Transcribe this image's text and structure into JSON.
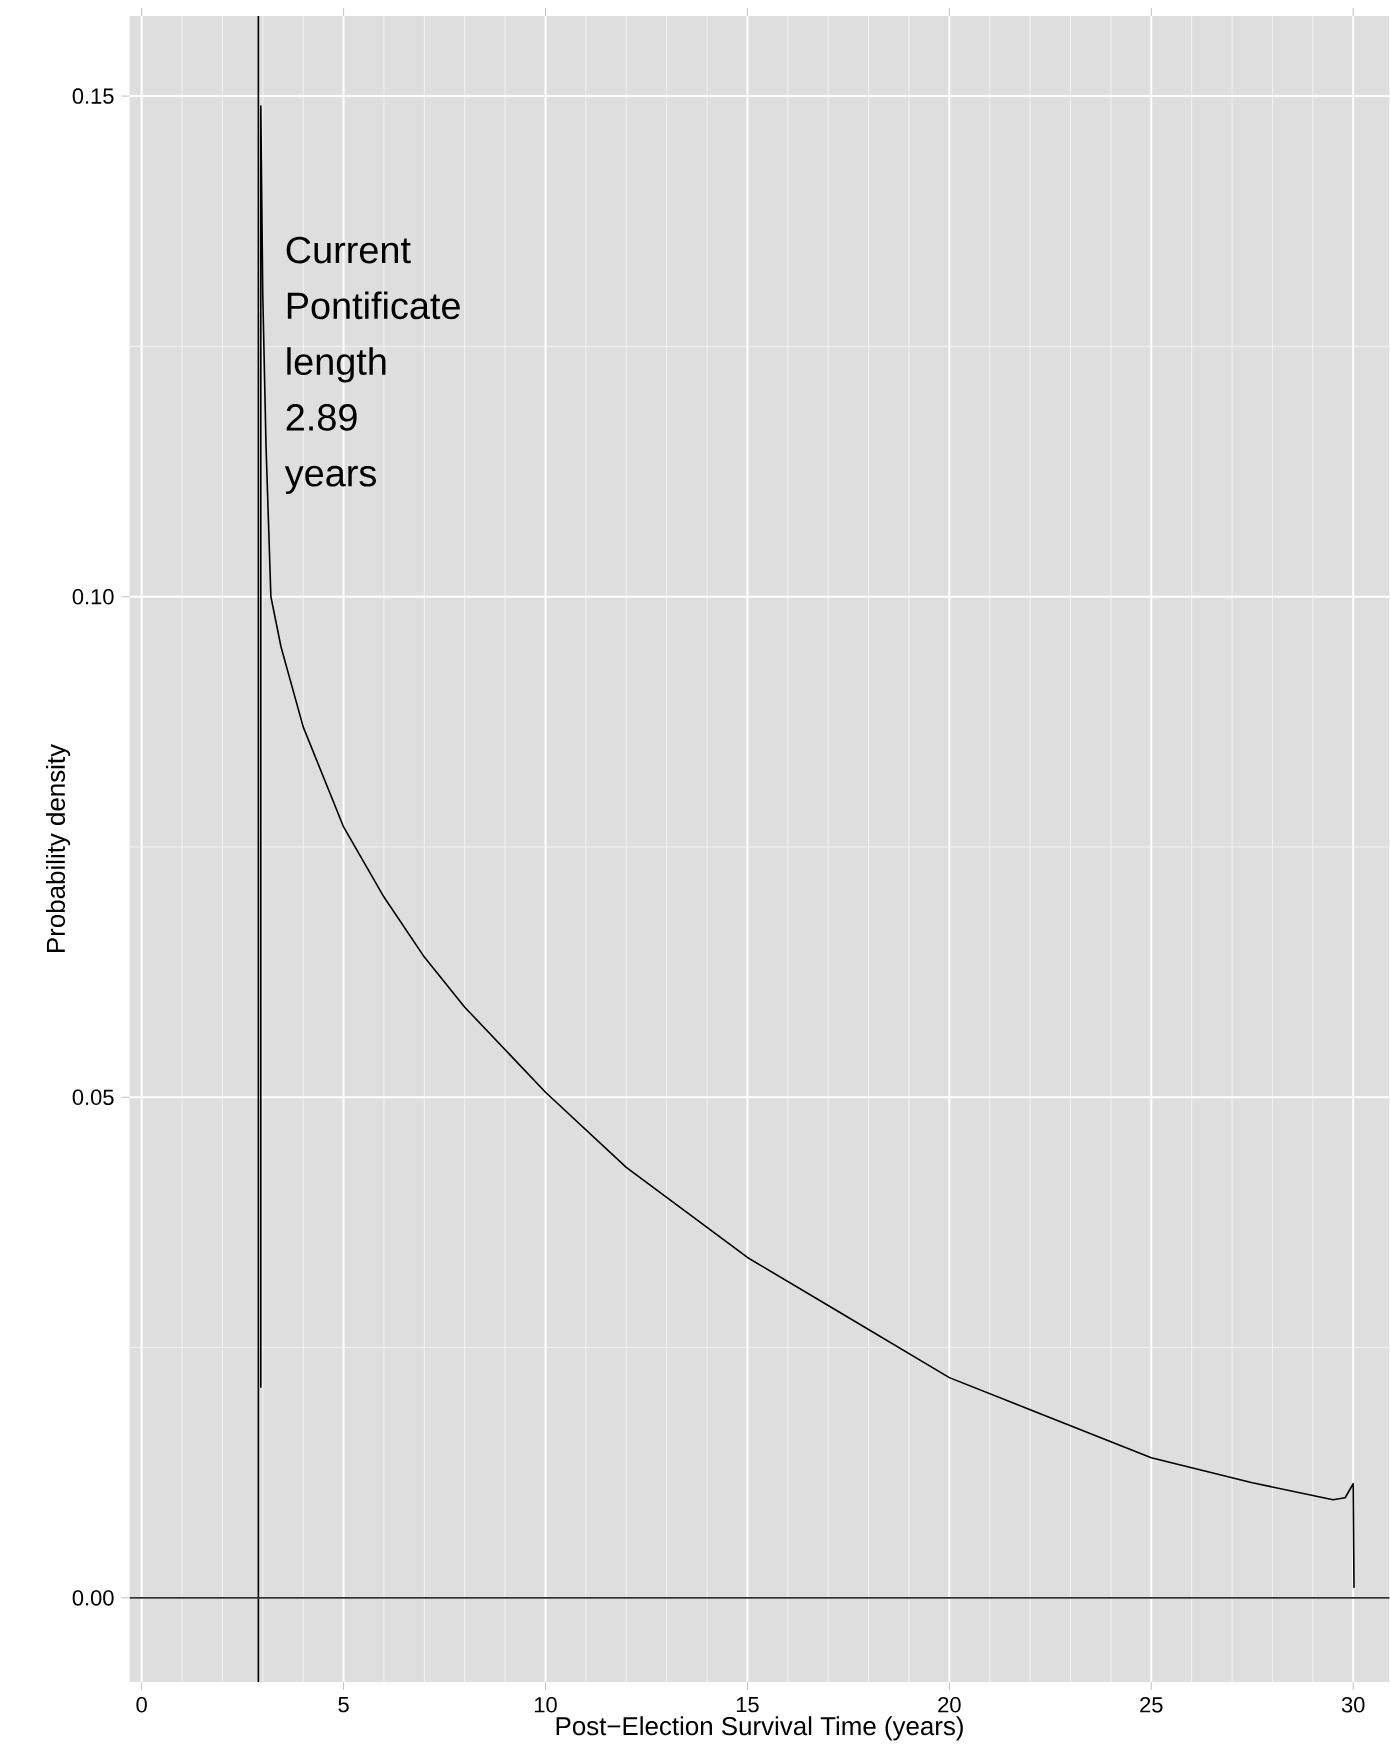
{
  "chart_data": {
    "type": "line",
    "xlabel": "Post−Election Survival Time (years)",
    "ylabel": "Probability density",
    "xlim": [
      -0.3,
      30.9
    ],
    "ylim": [
      -0.0084,
      0.158
    ],
    "xticks": [
      0,
      5,
      10,
      15,
      20,
      25,
      30
    ],
    "yticks": [
      {
        "value": 0,
        "label": "0.00"
      },
      {
        "value": 0.05,
        "label": "0.05"
      },
      {
        "value": 0.1,
        "label": "0.10"
      },
      {
        "value": 0.15,
        "label": "0.15"
      }
    ],
    "grid": true,
    "marker": "none",
    "line_style": "solid",
    "ref_lines": [
      {
        "axis": "x",
        "value": 2.89,
        "label": "Current Pontificate length 2.89 years",
        "color": "#000000"
      },
      {
        "axis": "y",
        "value": 0,
        "color": "#333333"
      }
    ],
    "series": [
      {
        "color": "#000000",
        "x": [
          2.95,
          2.95,
          3.0,
          3.08,
          3.2,
          3.45,
          4,
          5,
          6,
          7,
          8,
          10,
          12,
          15,
          17.5,
          20,
          22.5,
          25,
          27.5,
          29.5,
          29.8,
          30,
          30.02
        ],
        "values": [
          0.021,
          0.149,
          0.13,
          0.115,
          0.1,
          0.095,
          0.087,
          0.077,
          0.07,
          0.064,
          0.059,
          0.0505,
          0.043,
          0.034,
          0.028,
          0.022,
          0.018,
          0.014,
          0.0115,
          0.0098,
          0.01,
          0.0114,
          0.001
        ]
      }
    ]
  }
}
